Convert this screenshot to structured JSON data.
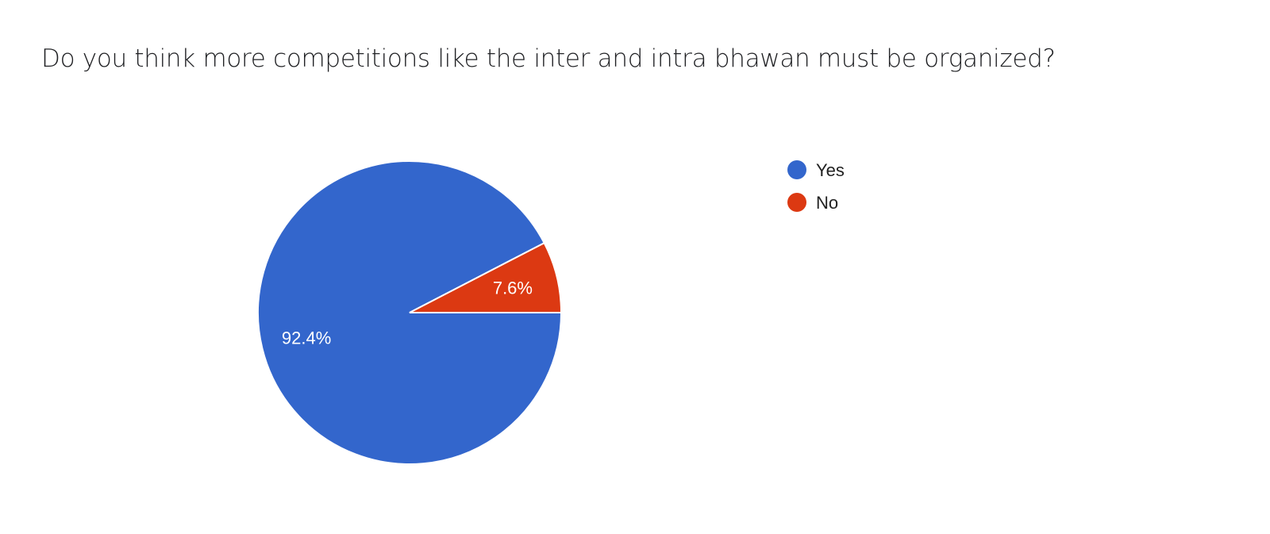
{
  "chart_data": {
    "type": "pie",
    "title": "Do you think more competitions like the inter and intra bhawan must be organized?",
    "categories": [
      "Yes",
      "No"
    ],
    "values": [
      92.4,
      7.6
    ],
    "data_labels": [
      "92.4%",
      "7.6%"
    ],
    "colors": [
      "#3366cc",
      "#dc3912"
    ],
    "legend": {
      "position": "right",
      "entries": [
        "Yes",
        "No"
      ]
    }
  }
}
